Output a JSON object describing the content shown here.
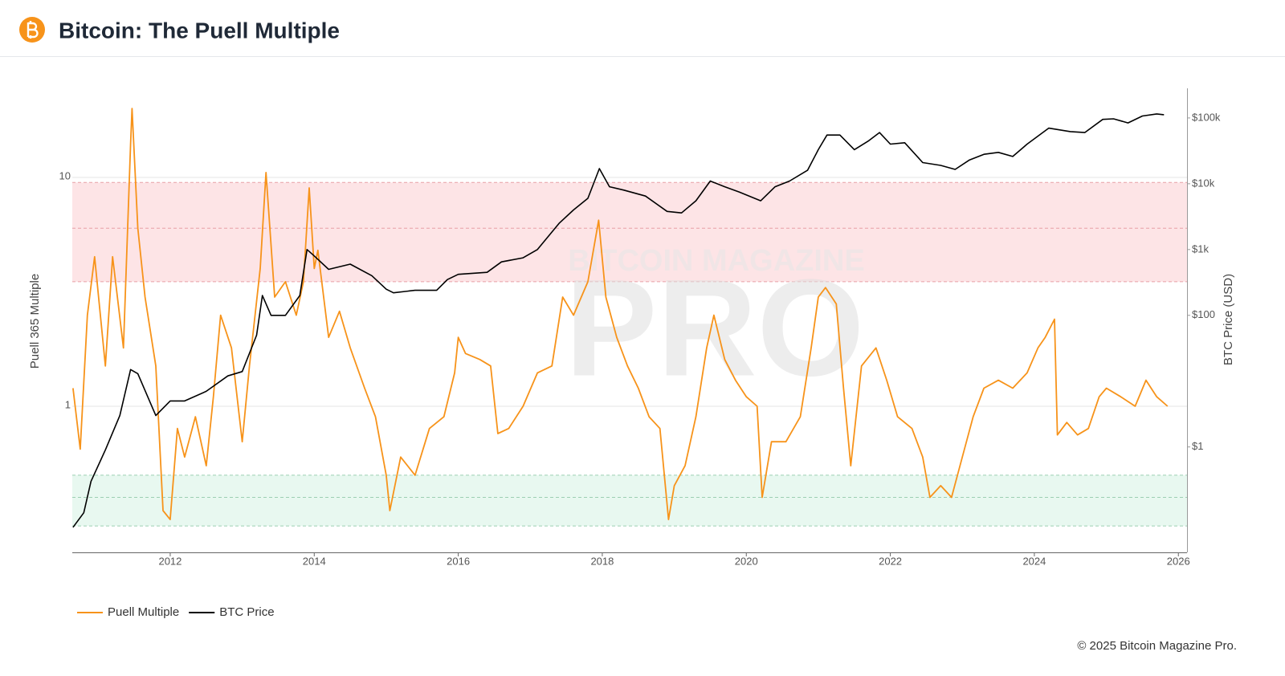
{
  "chart_data": {
    "type": "line",
    "title": "Bitcoin: The Puell Multiple",
    "ylabel": "Puell 365 Multiple",
    "y2label": "BTC Price (USD)",
    "watermark": [
      "BITCOIN MAGAZINE",
      "PRO"
    ],
    "footer": "© 2025 Bitcoin Magazine Pro.",
    "log_y": true,
    "log_y2": true,
    "xlim": [
      2010.64,
      2026.12
    ],
    "xticks": [
      2012,
      2014,
      2016,
      2018,
      2020,
      2022,
      2024,
      2026
    ],
    "ylim": [
      0.23,
      24.5
    ],
    "yticks": [
      1,
      10
    ],
    "y2lim": [
      0.025,
      282000
    ],
    "y2ticks": [
      {
        "value": 1,
        "label": "$1"
      },
      {
        "value": 100,
        "label": "$100"
      },
      {
        "value": 1000,
        "label": "$1k"
      },
      {
        "value": 10000,
        "label": "$10k"
      },
      {
        "value": 100000,
        "label": "$100k"
      }
    ],
    "grid": true,
    "legend": "bottom-left",
    "bands": [
      {
        "from": 3.5,
        "to": 9.5,
        "color": "#fde4e6",
        "line_color": "#e8a0a6",
        "lines": [
          3.5,
          6,
          9.5
        ]
      },
      {
        "from": 0.3,
        "to": 0.5,
        "color": "#e8f8f0",
        "line_color": "#9ccfb2",
        "lines": [
          0.3,
          0.4,
          0.5
        ]
      }
    ],
    "series": [
      {
        "name": "Puell Multiple",
        "color": "#f7931a",
        "x": [
          2010.65,
          2010.75,
          2010.85,
          2010.95,
          2011.1,
          2011.2,
          2011.35,
          2011.45,
          2011.47,
          2011.55,
          2011.65,
          2011.8,
          2011.9,
          2012.0,
          2012.1,
          2012.2,
          2012.35,
          2012.5,
          2012.6,
          2012.7,
          2012.85,
          2013.0,
          2013.1,
          2013.25,
          2013.33,
          2013.45,
          2013.6,
          2013.75,
          2013.85,
          2013.93,
          2014.0,
          2014.05,
          2014.2,
          2014.35,
          2014.5,
          2014.7,
          2014.85,
          2015.0,
          2015.05,
          2015.2,
          2015.4,
          2015.6,
          2015.8,
          2015.95,
          2016.0,
          2016.1,
          2016.3,
          2016.45,
          2016.55,
          2016.7,
          2016.9,
          2017.1,
          2017.3,
          2017.45,
          2017.6,
          2017.8,
          2017.95,
          2018.05,
          2018.2,
          2018.35,
          2018.5,
          2018.65,
          2018.8,
          2018.92,
          2019.0,
          2019.15,
          2019.3,
          2019.45,
          2019.55,
          2019.7,
          2019.85,
          2020.0,
          2020.15,
          2020.22,
          2020.35,
          2020.55,
          2020.75,
          2020.9,
          2021.0,
          2021.1,
          2021.25,
          2021.35,
          2021.45,
          2021.6,
          2021.8,
          2021.95,
          2022.1,
          2022.3,
          2022.45,
          2022.55,
          2022.7,
          2022.85,
          2023.0,
          2023.15,
          2023.3,
          2023.5,
          2023.7,
          2023.9,
          2024.05,
          2024.15,
          2024.28,
          2024.32,
          2024.45,
          2024.6,
          2024.75,
          2024.9,
          2025.0,
          2025.2,
          2025.4,
          2025.55,
          2025.7,
          2025.85
        ],
        "values": [
          1.2,
          0.65,
          2.5,
          4.5,
          1.5,
          4.5,
          1.8,
          14,
          20,
          6,
          3,
          1.5,
          0.35,
          0.32,
          0.8,
          0.6,
          0.9,
          0.55,
          1.1,
          2.5,
          1.8,
          0.7,
          1.5,
          4,
          10.5,
          3,
          3.5,
          2.5,
          3.5,
          9,
          4,
          4.8,
          2,
          2.6,
          1.8,
          1.2,
          0.9,
          0.5,
          0.35,
          0.6,
          0.5,
          0.8,
          0.9,
          1.4,
          2.0,
          1.7,
          1.6,
          1.5,
          0.76,
          0.8,
          1.0,
          1.4,
          1.5,
          3,
          2.5,
          3.5,
          6.5,
          3,
          2,
          1.5,
          1.2,
          0.9,
          0.8,
          0.32,
          0.45,
          0.55,
          0.9,
          1.8,
          2.5,
          1.6,
          1.3,
          1.1,
          1.0,
          0.4,
          0.7,
          0.7,
          0.9,
          1.8,
          3,
          3.3,
          2.8,
          1.2,
          0.55,
          1.5,
          1.8,
          1.3,
          0.9,
          0.8,
          0.6,
          0.4,
          0.45,
          0.4,
          0.6,
          0.9,
          1.2,
          1.3,
          1.2,
          1.4,
          1.8,
          2.0,
          2.4,
          0.75,
          0.85,
          0.75,
          0.8,
          1.1,
          1.2,
          1.1,
          1.0,
          1.3,
          1.1,
          1.0
        ]
      },
      {
        "name": "BTC Price",
        "color": "#000000",
        "axis": "y2",
        "x": [
          2010.65,
          2010.8,
          2010.9,
          2011.1,
          2011.3,
          2011.45,
          2011.55,
          2011.8,
          2012.0,
          2012.2,
          2012.5,
          2012.8,
          2013.0,
          2013.2,
          2013.28,
          2013.4,
          2013.6,
          2013.8,
          2013.9,
          2014.0,
          2014.2,
          2014.5,
          2014.8,
          2015.0,
          2015.1,
          2015.4,
          2015.7,
          2015.85,
          2016.0,
          2016.4,
          2016.6,
          2016.9,
          2017.1,
          2017.4,
          2017.6,
          2017.8,
          2017.96,
          2018.1,
          2018.3,
          2018.6,
          2018.9,
          2019.1,
          2019.3,
          2019.5,
          2019.7,
          2019.9,
          2020.2,
          2020.4,
          2020.6,
          2020.85,
          2021.0,
          2021.12,
          2021.3,
          2021.5,
          2021.7,
          2021.85,
          2022.0,
          2022.2,
          2022.45,
          2022.7,
          2022.9,
          2023.1,
          2023.3,
          2023.5,
          2023.7,
          2023.9,
          2024.2,
          2024.5,
          2024.7,
          2024.95,
          2025.1,
          2025.3,
          2025.5,
          2025.7,
          2025.8
        ],
        "values": [
          0.06,
          0.1,
          0.3,
          0.9,
          3,
          15,
          13,
          3,
          5,
          5,
          7,
          12,
          14,
          50,
          200,
          100,
          100,
          200,
          1000,
          800,
          500,
          600,
          400,
          250,
          220,
          240,
          240,
          350,
          420,
          450,
          650,
          750,
          1000,
          2500,
          4000,
          6000,
          17000,
          9000,
          8000,
          6500,
          3800,
          3600,
          5500,
          11000,
          9000,
          7500,
          5500,
          9000,
          11000,
          16000,
          33000,
          55000,
          55000,
          33000,
          45000,
          60000,
          40000,
          42000,
          21000,
          19000,
          16500,
          23000,
          28000,
          30000,
          26000,
          40000,
          70000,
          62000,
          60000,
          95000,
          97000,
          84000,
          107000,
          115000,
          112000
        ]
      }
    ]
  }
}
